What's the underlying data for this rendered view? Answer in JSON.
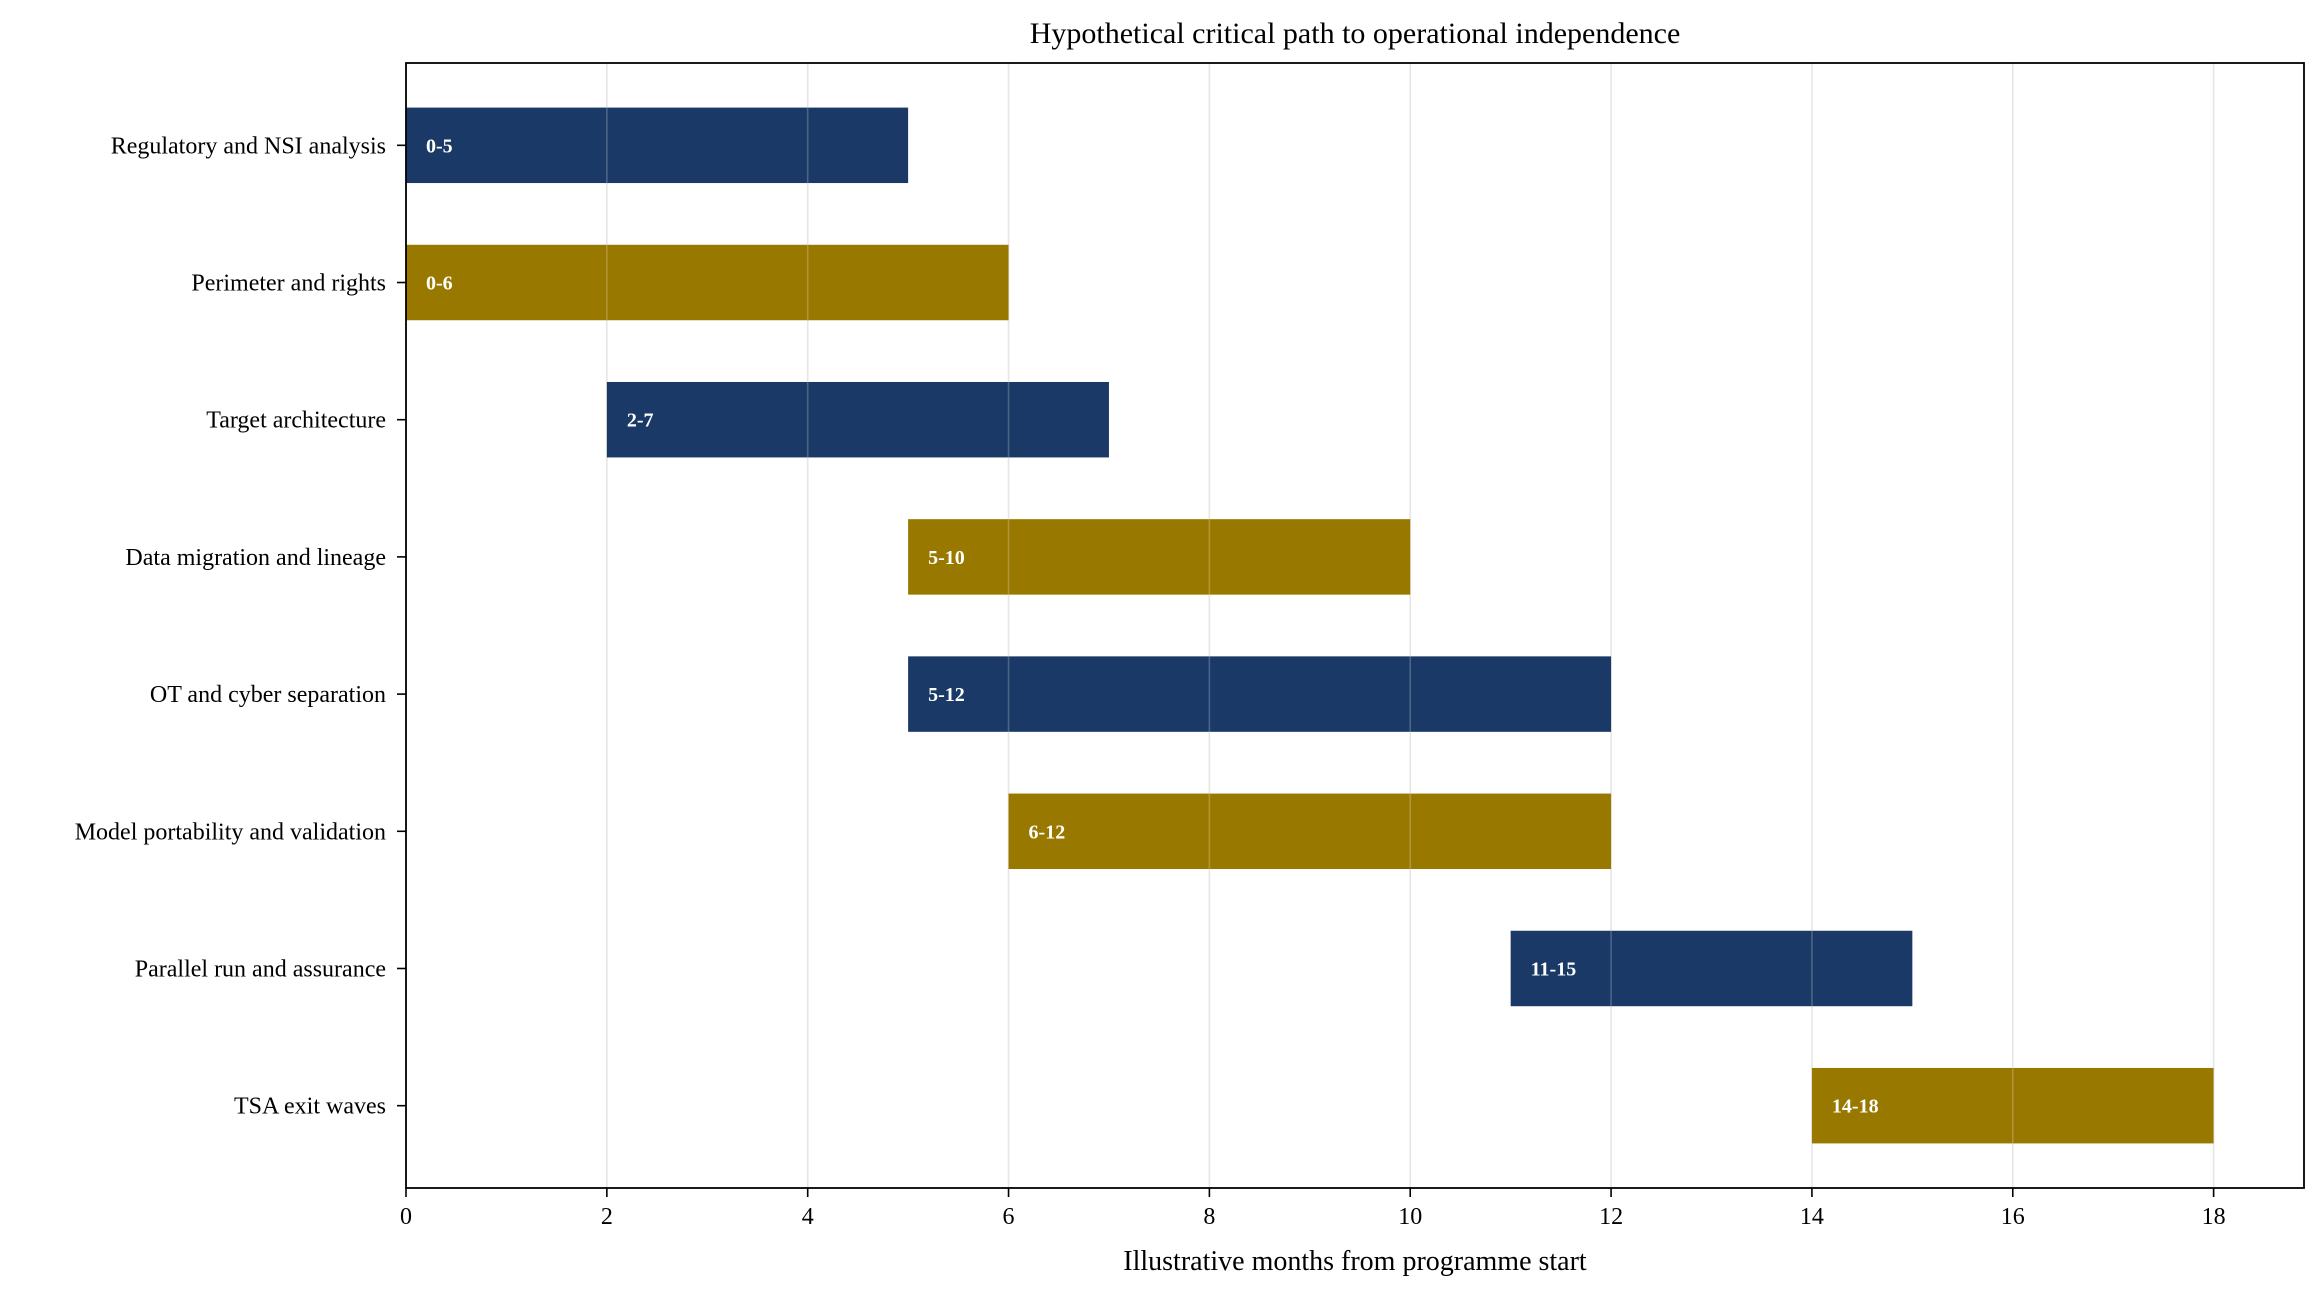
{
  "chart_data": {
    "type": "bar",
    "orientation": "horizontal",
    "style": "gantt",
    "title": "Hypothetical critical path to operational independence",
    "xlabel": "Illustrative months from programme start",
    "ylabel": "",
    "xlim": [
      0,
      18.9
    ],
    "xticks": [
      0,
      2,
      4,
      6,
      8,
      10,
      12,
      14,
      16,
      18
    ],
    "grid": "vertical",
    "legend": "none",
    "colors": {
      "navy": "#1a3966",
      "gold": "#997800",
      "grid": "#e6e6e6",
      "axis": "#000000"
    },
    "tasks": [
      {
        "name": "Regulatory and NSI analysis",
        "start": 0,
        "end": 5,
        "label": "0-5",
        "color": "#1a3966"
      },
      {
        "name": "Perimeter and rights",
        "start": 0,
        "end": 6,
        "label": "0-6",
        "color": "#997800"
      },
      {
        "name": "Target architecture",
        "start": 2,
        "end": 7,
        "label": "2-7",
        "color": "#1a3966"
      },
      {
        "name": "Data migration and lineage",
        "start": 5,
        "end": 10,
        "label": "5-10",
        "color": "#997800"
      },
      {
        "name": "OT and cyber separation",
        "start": 5,
        "end": 12,
        "label": "5-12",
        "color": "#1a3966"
      },
      {
        "name": "Model portability and validation",
        "start": 6,
        "end": 12,
        "label": "6-12",
        "color": "#997800"
      },
      {
        "name": "Parallel run and assurance",
        "start": 11,
        "end": 15,
        "label": "11-15",
        "color": "#1a3966"
      },
      {
        "name": "TSA exit waves",
        "start": 14,
        "end": 18,
        "label": "14-18",
        "color": "#997800"
      }
    ]
  }
}
